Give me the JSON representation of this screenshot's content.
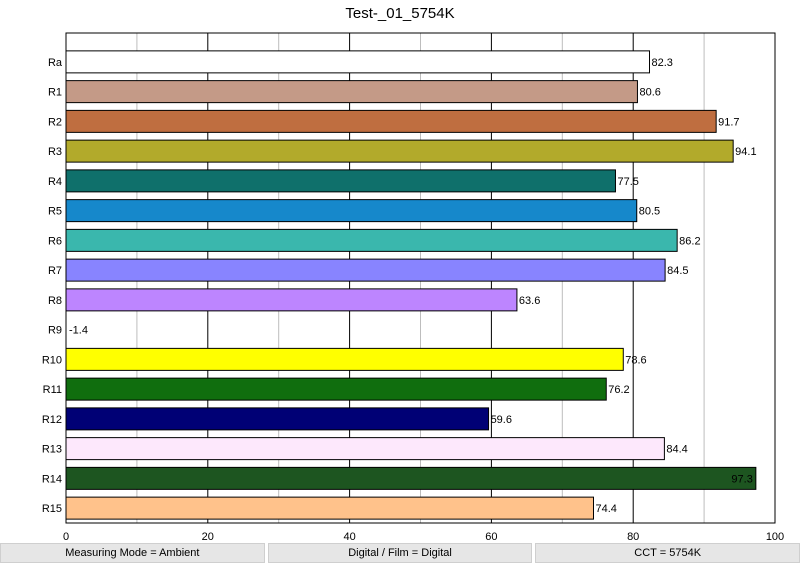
{
  "chart_data": {
    "type": "bar",
    "orientation": "horizontal",
    "title": "Test-_01_5754K",
    "xlim": [
      0,
      100
    ],
    "xticks": [
      0,
      20,
      40,
      60,
      80,
      100
    ],
    "grid": true,
    "categories": [
      "Ra",
      "R1",
      "R2",
      "R3",
      "R4",
      "R5",
      "R6",
      "R7",
      "R8",
      "R9",
      "R10",
      "R11",
      "R12",
      "R13",
      "R14",
      "R15"
    ],
    "values": [
      82.3,
      80.6,
      91.7,
      94.1,
      77.5,
      80.5,
      86.2,
      84.5,
      63.6,
      -1.4,
      78.6,
      76.2,
      59.6,
      84.4,
      97.3,
      74.4
    ],
    "value_labels": [
      "82.3",
      "80.6",
      "91.7",
      "94.1",
      "77.5",
      "80.5",
      "86.2",
      "84.5",
      "63.6",
      "-1.4",
      "78.6",
      "76.2",
      "59.6",
      "84.4",
      "97.3",
      "74.4"
    ],
    "colors": [
      "#ffffff",
      "#c49a87",
      "#bf6e40",
      "#b2aa2b",
      "#0f706b",
      "#1688cb",
      "#3ab7ad",
      "#8884ff",
      "#bd85ff",
      "#ff0000",
      "#ffff00",
      "#106e0e",
      "#000075",
      "#fde8fc",
      "#1d5520",
      "#ffc28b"
    ]
  },
  "footer": {
    "measuring_mode": "Measuring Mode = Ambient",
    "digital_film": "Digital / Film = Digital",
    "cct": "CCT = 5754K"
  }
}
